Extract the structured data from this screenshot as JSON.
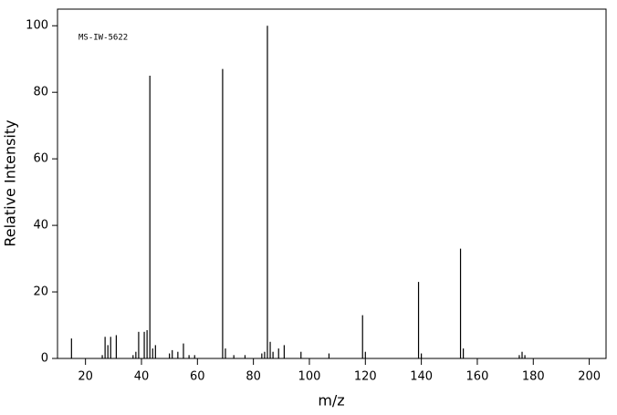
{
  "chart_data": {
    "type": "bar",
    "annotation": "MS-IW-5622",
    "xlabel": "m/z",
    "ylabel": "Relative Intensity",
    "x": [
      15,
      26,
      27,
      28,
      29,
      31,
      37,
      38,
      39,
      41,
      42,
      43,
      44,
      45,
      50,
      51,
      53,
      55,
      57,
      59,
      69,
      70,
      73,
      77,
      83,
      84,
      85,
      86,
      87,
      89,
      91,
      97,
      107,
      119,
      120,
      139,
      140,
      154,
      155,
      175,
      176,
      177
    ],
    "values": [
      6,
      1,
      6.5,
      4,
      6.5,
      7,
      1,
      2,
      8,
      8,
      8.5,
      85,
      3,
      4,
      1.5,
      2.5,
      2,
      4.5,
      1,
      1,
      87,
      3,
      1,
      1,
      1.5,
      2,
      100,
      5,
      2,
      3,
      4,
      2,
      1.5,
      13,
      2,
      23,
      1.5,
      33,
      3,
      1,
      2,
      1
    ],
    "color": "#000000",
    "xlim": [
      10,
      206
    ],
    "xticks": [
      20,
      40,
      60,
      80,
      100,
      120,
      140,
      160,
      180,
      200
    ],
    "ylim": [
      0,
      105
    ],
    "yticks": [
      0,
      20,
      40,
      60,
      80,
      100
    ]
  }
}
